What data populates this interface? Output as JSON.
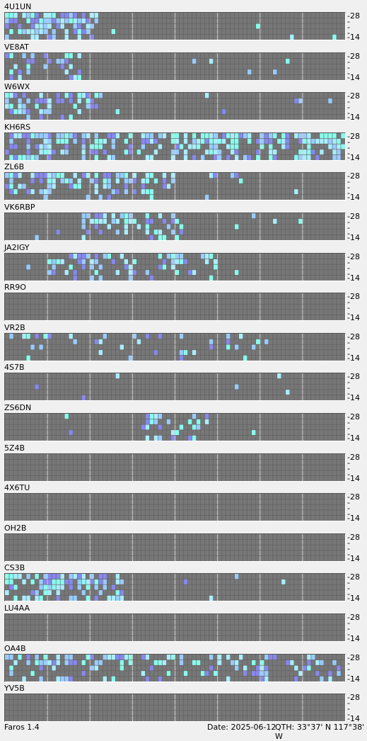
{
  "beacons": [
    {
      "call": "4U1UN",
      "axis_top": "28",
      "axis_bottom": "14"
    },
    {
      "call": "VE8AT",
      "axis_top": "28",
      "axis_bottom": "14"
    },
    {
      "call": "W6WX",
      "axis_top": "28",
      "axis_bottom": "14"
    },
    {
      "call": "KH6RS",
      "axis_top": "28",
      "axis_bottom": "14"
    },
    {
      "call": "ZL6B",
      "axis_top": "28",
      "axis_bottom": "14"
    },
    {
      "call": "VK6RBP",
      "axis_top": "28",
      "axis_bottom": "14"
    },
    {
      "call": "JA2IGY",
      "axis_top": "28",
      "axis_bottom": "14"
    },
    {
      "call": "RR9O",
      "axis_top": "28",
      "axis_bottom": "14"
    },
    {
      "call": "VR2B",
      "axis_top": "28",
      "axis_bottom": "14"
    },
    {
      "call": "4S7B",
      "axis_top": "28",
      "axis_bottom": "14"
    },
    {
      "call": "ZS6DN",
      "axis_top": "28",
      "axis_bottom": "14"
    },
    {
      "call": "5Z4B",
      "axis_top": "28",
      "axis_bottom": "14"
    },
    {
      "call": "4X6TU",
      "axis_top": "28",
      "axis_bottom": "14"
    },
    {
      "call": "OH2B",
      "axis_top": "28",
      "axis_bottom": "14"
    },
    {
      "call": "CS3B",
      "axis_top": "28",
      "axis_bottom": "14"
    },
    {
      "call": "LU4AA",
      "axis_top": "28",
      "axis_bottom": "14"
    },
    {
      "call": "OA4B",
      "axis_top": "28",
      "axis_bottom": "14"
    },
    {
      "call": "YV5B",
      "axis_top": "28",
      "axis_bottom": "14"
    }
  ],
  "colors": {
    "cell_empty": "#777777",
    "cell_weak": "#8888ee",
    "cell_medium": "#99ccff",
    "cell_strong": "#88ffee",
    "cell_mid2": "#aaeeff",
    "hour_line": "#cfcfcf",
    "cell_line": "#5f5f5f"
  },
  "status": {
    "app": "Faros 1.4",
    "date": "Date: 2025-06-12",
    "qth": "QTH: 33°37' N  117°38' W"
  }
}
